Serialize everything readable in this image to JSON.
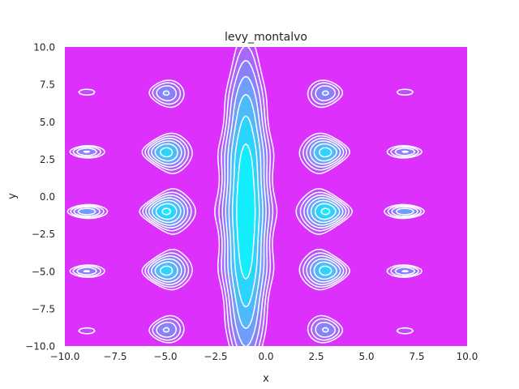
{
  "chart_data": {
    "type": "heatmap",
    "subtype": "filled-contour",
    "title": "levy_montalvo",
    "xlabel": "x",
    "ylabel": "y",
    "xlim": [
      -10,
      10
    ],
    "ylim": [
      -10,
      10
    ],
    "x_ticks": [
      "−10.0",
      "−7.5",
      "−5.0",
      "−2.5",
      "0.0",
      "2.5",
      "5.0",
      "7.5",
      "10.0"
    ],
    "y_ticks": [
      "−10.0",
      "−7.5",
      "−5.0",
      "−2.5",
      "0.0",
      "2.5",
      "5.0",
      "7.5",
      "10.0"
    ],
    "x_tick_values": [
      -10,
      -7.5,
      -5,
      -2.5,
      0,
      2.5,
      5,
      7.5,
      10
    ],
    "y_tick_values": [
      -10,
      -7.5,
      -5,
      -2.5,
      0,
      2.5,
      5,
      7.5,
      10
    ],
    "grid": false,
    "colormap": "cool",
    "contour_line_color": "#ffffff",
    "function": "levy_montalvo: (pi/2)*(10*sin^2(pi*w1) + (w1-1)^2*(1+10*sin^2(pi*w2)) + (w2-1)^2), wi = 1 + (xi+1)/4",
    "z_range": [
      0,
      16
    ],
    "levels": [
      0,
      2,
      4,
      6,
      8,
      10,
      12,
      14,
      16
    ],
    "level_colors": [
      "#12eefd",
      "#2bd4fc",
      "#4dbafc",
      "#6f9efc",
      "#8a80fc",
      "#a768fc",
      "#c14cfc",
      "#dd30fc"
    ]
  }
}
